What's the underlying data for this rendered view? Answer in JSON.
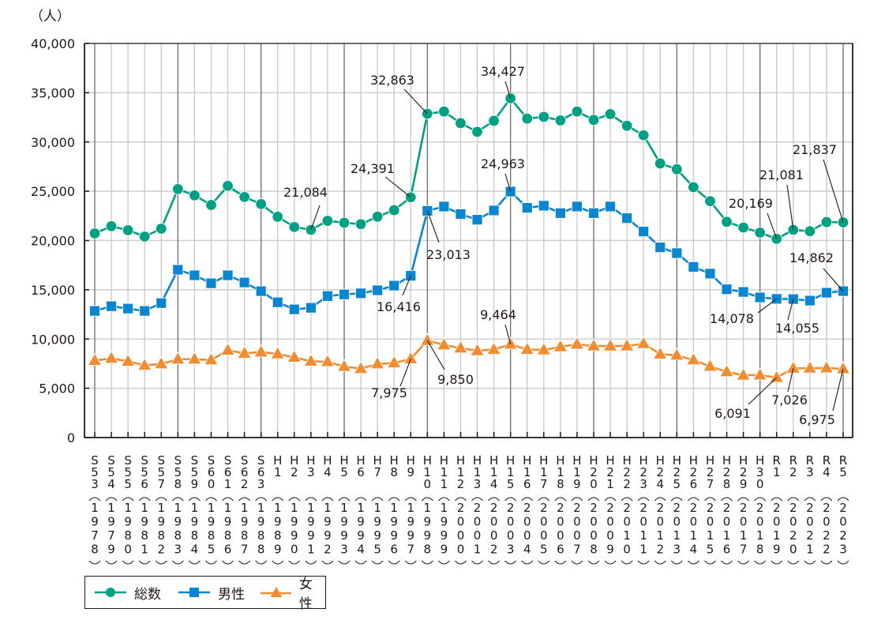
{
  "unit_label": "（人）",
  "chart_data": {
    "type": "line",
    "title": "",
    "xlabel": "",
    "ylabel": "（人）",
    "ylim": [
      0,
      40000
    ],
    "yticks": [
      0,
      5000,
      10000,
      15000,
      20000,
      25000,
      30000,
      35000,
      40000
    ],
    "ytick_labels": [
      "0",
      "5,000",
      "10,000",
      "15,000",
      "20,000",
      "25,000",
      "30,000",
      "35,000",
      "40,000"
    ],
    "grid": true,
    "legend_position": "bottom-left",
    "categories": [
      {
        "era": [
          "S",
          "5",
          "3"
        ],
        "year": "1978"
      },
      {
        "era": [
          "S",
          "5",
          "4"
        ],
        "year": "1979"
      },
      {
        "era": [
          "S",
          "5",
          "5"
        ],
        "year": "1980"
      },
      {
        "era": [
          "S",
          "5",
          "6"
        ],
        "year": "1981"
      },
      {
        "era": [
          "S",
          "5",
          "7"
        ],
        "year": "1982"
      },
      {
        "era": [
          "S",
          "5",
          "8"
        ],
        "year": "1983"
      },
      {
        "era": [
          "S",
          "5",
          "9"
        ],
        "year": "1984"
      },
      {
        "era": [
          "S",
          "6",
          "0"
        ],
        "year": "1985"
      },
      {
        "era": [
          "S",
          "6",
          "1"
        ],
        "year": "1986"
      },
      {
        "era": [
          "S",
          "6",
          "2"
        ],
        "year": "1987"
      },
      {
        "era": [
          "S",
          "6",
          "3"
        ],
        "year": "1988"
      },
      {
        "era": [
          "H",
          "1"
        ],
        "year": "1989"
      },
      {
        "era": [
          "H",
          "2"
        ],
        "year": "1990"
      },
      {
        "era": [
          "H",
          "3"
        ],
        "year": "1991"
      },
      {
        "era": [
          "H",
          "4"
        ],
        "year": "1992"
      },
      {
        "era": [
          "H",
          "5"
        ],
        "year": "1993"
      },
      {
        "era": [
          "H",
          "6"
        ],
        "year": "1994"
      },
      {
        "era": [
          "H",
          "7"
        ],
        "year": "1995"
      },
      {
        "era": [
          "H",
          "8"
        ],
        "year": "1996"
      },
      {
        "era": [
          "H",
          "9"
        ],
        "year": "1997"
      },
      {
        "era": [
          "H",
          "1",
          "0"
        ],
        "year": "1998"
      },
      {
        "era": [
          "H",
          "1",
          "1"
        ],
        "year": "1999"
      },
      {
        "era": [
          "H",
          "1",
          "2"
        ],
        "year": "2000"
      },
      {
        "era": [
          "H",
          "1",
          "3"
        ],
        "year": "2001"
      },
      {
        "era": [
          "H",
          "1",
          "4"
        ],
        "year": "2002"
      },
      {
        "era": [
          "H",
          "1",
          "5"
        ],
        "year": "2003"
      },
      {
        "era": [
          "H",
          "1",
          "6"
        ],
        "year": "2004"
      },
      {
        "era": [
          "H",
          "1",
          "7"
        ],
        "year": "2005"
      },
      {
        "era": [
          "H",
          "1",
          "8"
        ],
        "year": "2006"
      },
      {
        "era": [
          "H",
          "1",
          "9"
        ],
        "year": "2007"
      },
      {
        "era": [
          "H",
          "2",
          "0"
        ],
        "year": "2008"
      },
      {
        "era": [
          "H",
          "2",
          "1"
        ],
        "year": "2009"
      },
      {
        "era": [
          "H",
          "2",
          "2"
        ],
        "year": "2010"
      },
      {
        "era": [
          "H",
          "2",
          "3"
        ],
        "year": "2011"
      },
      {
        "era": [
          "H",
          "2",
          "4"
        ],
        "year": "2012"
      },
      {
        "era": [
          "H",
          "2",
          "5"
        ],
        "year": "2013"
      },
      {
        "era": [
          "H",
          "2",
          "6"
        ],
        "year": "2014"
      },
      {
        "era": [
          "H",
          "2",
          "7"
        ],
        "year": "2015"
      },
      {
        "era": [
          "H",
          "2",
          "8"
        ],
        "year": "2016"
      },
      {
        "era": [
          "H",
          "2",
          "9"
        ],
        "year": "2017"
      },
      {
        "era": [
          "H",
          "3",
          "0"
        ],
        "year": "2018"
      },
      {
        "era": [
          "R",
          "1"
        ],
        "year": "2019"
      },
      {
        "era": [
          "R",
          "2"
        ],
        "year": "2020"
      },
      {
        "era": [
          "R",
          "3"
        ],
        "year": "2021"
      },
      {
        "era": [
          "R",
          "4"
        ],
        "year": "2022"
      },
      {
        "era": [
          "R",
          "5"
        ],
        "year": "2023"
      }
    ],
    "series": [
      {
        "name": "総数",
        "color": "#00a082",
        "marker": "circle",
        "values": [
          20720,
          21450,
          21040,
          20400,
          21200,
          25220,
          24580,
          23610,
          25540,
          24420,
          23700,
          22410,
          21370,
          21084,
          22000,
          21800,
          21660,
          22420,
          23080,
          24391,
          32863,
          33090,
          31910,
          31030,
          32150,
          34427,
          32370,
          32550,
          32190,
          33090,
          32240,
          32830,
          31650,
          30680,
          27820,
          27230,
          25410,
          23990,
          21900,
          21310,
          20800,
          20169,
          21081,
          20940,
          21870,
          21837
        ]
      },
      {
        "name": "男性",
        "color": "#0a85cf",
        "marker": "square",
        "values": [
          12850,
          13330,
          13090,
          12850,
          13650,
          17030,
          16470,
          15660,
          16470,
          15740,
          14860,
          13730,
          13010,
          13170,
          14360,
          14530,
          14640,
          14950,
          15420,
          16416,
          23013,
          23450,
          22680,
          22110,
          23050,
          24963,
          23320,
          23530,
          22780,
          23450,
          22780,
          23450,
          22270,
          20910,
          19300,
          18720,
          17320,
          16640,
          15050,
          14780,
          14220,
          14078,
          14055,
          13900,
          14700,
          14862
        ]
      },
      {
        "name": "女性",
        "color": "#f08c32",
        "marker": "triangle",
        "values": [
          7820,
          8030,
          7740,
          7330,
          7470,
          7950,
          7950,
          7870,
          8860,
          8540,
          8680,
          8480,
          8140,
          7740,
          7690,
          7210,
          6990,
          7470,
          7570,
          7975,
          9850,
          9400,
          9080,
          8810,
          8940,
          9464,
          8940,
          8890,
          9210,
          9470,
          9290,
          9290,
          9290,
          9530,
          8460,
          8350,
          7870,
          7230,
          6670,
          6320,
          6340,
          6091,
          7026,
          7040,
          7060,
          6975
        ]
      }
    ],
    "annotations": [
      {
        "series": 0,
        "index": 13,
        "text": "21,084"
      },
      {
        "series": 0,
        "index": 19,
        "text": "24,391"
      },
      {
        "series": 0,
        "index": 20,
        "text": "32,863"
      },
      {
        "series": 0,
        "index": 25,
        "text": "34,427"
      },
      {
        "series": 0,
        "index": 41,
        "text": "20,169"
      },
      {
        "series": 0,
        "index": 42,
        "text": "21,081"
      },
      {
        "series": 0,
        "index": 45,
        "text": "21,837"
      },
      {
        "series": 1,
        "index": 19,
        "text": "16,416"
      },
      {
        "series": 1,
        "index": 20,
        "text": "23,013"
      },
      {
        "series": 1,
        "index": 25,
        "text": "24,963"
      },
      {
        "series": 1,
        "index": 41,
        "text": "14,078"
      },
      {
        "series": 1,
        "index": 42,
        "text": "14,055"
      },
      {
        "series": 1,
        "index": 45,
        "text": "14,862"
      },
      {
        "series": 2,
        "index": 19,
        "text": "7,975"
      },
      {
        "series": 2,
        "index": 20,
        "text": "9,850"
      },
      {
        "series": 2,
        "index": 25,
        "text": "9,464"
      },
      {
        "series": 2,
        "index": 41,
        "text": "6,091"
      },
      {
        "series": 2,
        "index": 42,
        "text": "7,026"
      },
      {
        "series": 2,
        "index": 45,
        "text": "6,975"
      }
    ]
  },
  "legend": {
    "items": [
      {
        "label": "総数",
        "color": "#00a082",
        "marker": "circle"
      },
      {
        "label": "男性",
        "color": "#0a85cf",
        "marker": "square"
      },
      {
        "label": "女性",
        "color": "#f08c32",
        "marker": "triangle"
      }
    ]
  }
}
